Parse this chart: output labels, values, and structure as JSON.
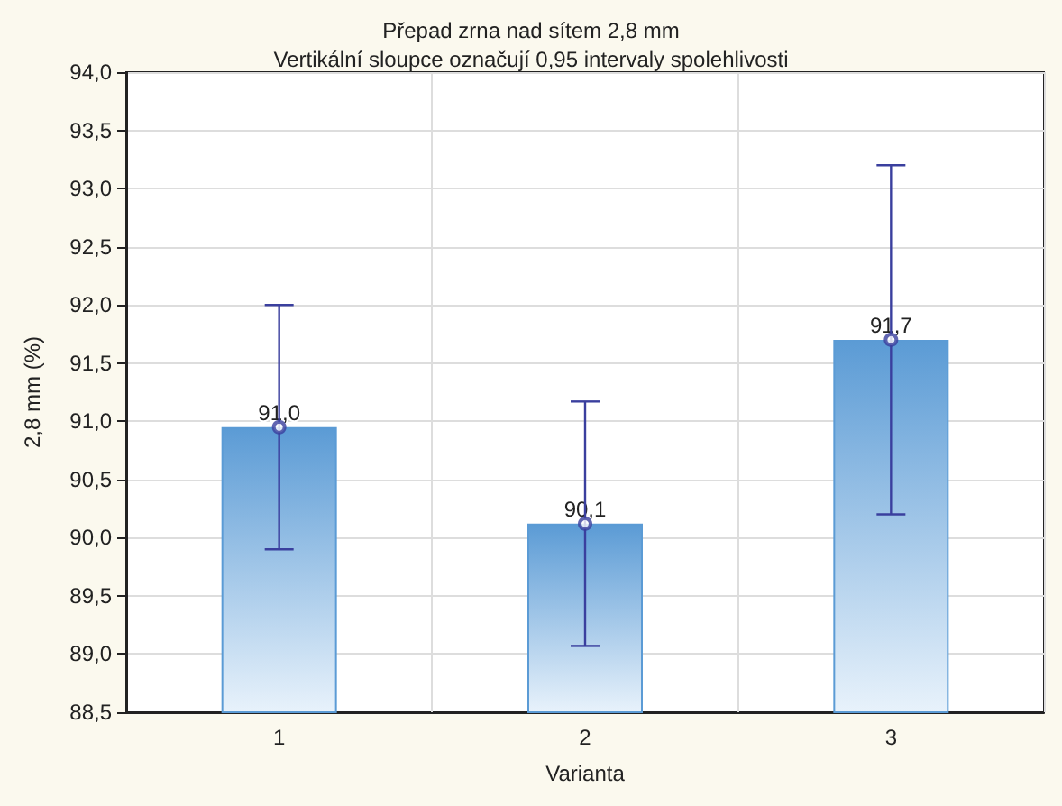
{
  "chart_data": {
    "type": "bar",
    "title": "Přepad zrna nad sítem 2,8 mm",
    "subtitle": "Vertikální sloupce označují 0,95 intervaly spolehlivosti",
    "xlabel": "Varianta",
    "ylabel": "2,8 mm (%)",
    "categories": [
      "1",
      "2",
      "3"
    ],
    "series": [
      {
        "color": "#5b9bd5",
        "values": [
          90.95,
          90.12,
          91.7
        ],
        "errors": [
          [
            89.9,
            92.0
          ],
          [
            89.07,
            91.17
          ],
          [
            90.2,
            93.2
          ]
        ],
        "value_labels": [
          "91,0",
          "90,1",
          "91,7"
        ]
      },
      {
        "type": "scatter",
        "color": "#3a3f9e",
        "x": [
          "1",
          "2",
          "3"
        ],
        "values": [
          90.95,
          90.12,
          91.7
        ]
      }
    ],
    "ylim": [
      88.5,
      94.0
    ],
    "yticks": [
      {
        "value": 88.5,
        "label": "88,5"
      },
      {
        "value": 89.0,
        "label": "89,0"
      },
      {
        "value": 89.5,
        "label": "89,5"
      },
      {
        "value": 90.0,
        "label": "90,0"
      },
      {
        "value": 90.5,
        "label": "90,5"
      },
      {
        "value": 91.0,
        "label": "91,0"
      },
      {
        "value": 91.5,
        "label": "91,5"
      },
      {
        "value": 92.0,
        "label": "92,0"
      },
      {
        "value": 92.5,
        "label": "92,5"
      },
      {
        "value": 93.0,
        "label": "93,0"
      },
      {
        "value": 93.5,
        "label": "93,5"
      },
      {
        "value": 94.0,
        "label": "94,0"
      }
    ],
    "grid": true,
    "marker": "circle"
  }
}
